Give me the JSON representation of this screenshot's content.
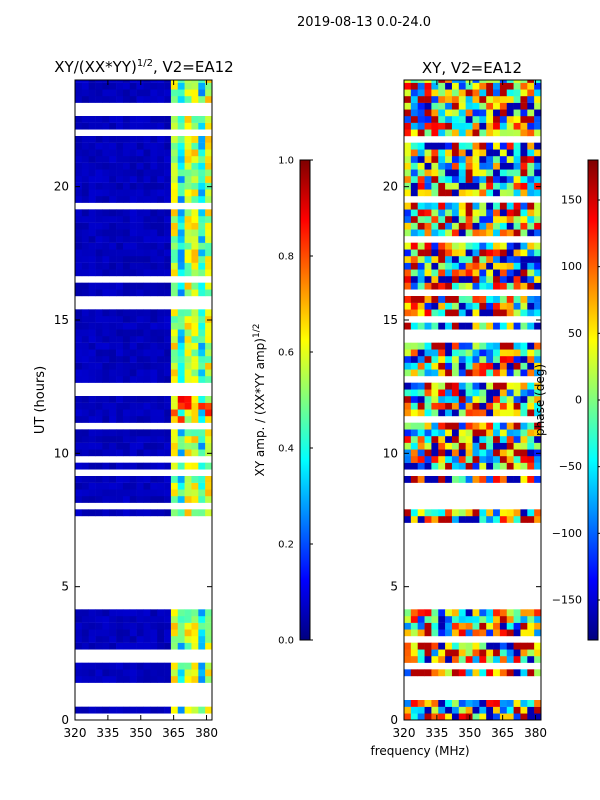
{
  "figure": {
    "suptitle": "2019-08-13 0.0-24.0",
    "xlabel": "frequency (MHz)"
  },
  "colors": {
    "jet": [
      "#00007f",
      "#0000ff",
      "#007fff",
      "#00ffff",
      "#7fff7f",
      "#ffff00",
      "#ff7f00",
      "#ff0000",
      "#7f0000"
    ],
    "blank": "#ffffff",
    "frame": "#000000"
  },
  "chart_data": [
    {
      "type": "heatmap",
      "title": "XY/(XX*YY)^1/2, V2=EA12",
      "title_main": "XY/(XX*YY)",
      "title_sup": "1/2",
      "title_tail": ", V2=EA12",
      "xlabel": "",
      "ylabel": "UT (hours)",
      "xlim": [
        320,
        382.5
      ],
      "ylim": [
        0,
        24
      ],
      "xticks": [
        320,
        335,
        350,
        365,
        380
      ],
      "yticks": [
        0,
        5,
        10,
        15,
        20
      ],
      "colorbar": {
        "label": "XY amp. / (XX*YY amp)^1/2",
        "label_main": "XY amp. / (XX*YY amp)",
        "label_sup": "1/2",
        "range": [
          0.0,
          1.0
        ],
        "ticks": [
          "0.0",
          "0.2",
          "0.4",
          "0.6",
          "0.8",
          "1.0"
        ],
        "tick_values": [
          0.0,
          0.2,
          0.4,
          0.6,
          0.8,
          1.0
        ]
      },
      "data_hours": [
        [
          0.0,
          0.75
        ],
        [
          1.4,
          4.35
        ],
        [
          7.4,
          24.0
        ]
      ],
      "gap_hours": [
        0.75,
        1.4,
        4.35,
        7.4
      ],
      "values_description": "amplitude mostly ~0.05 below 362 MHz; channels 362-382 MHz show bands 0.3-0.7; peak ~0.85 near 11.0-12.0 h"
    },
    {
      "type": "heatmap",
      "title": "XY, V2=EA12",
      "xlabel": "",
      "ylabel": "",
      "xlim": [
        320,
        382.5
      ],
      "ylim": [
        0,
        24
      ],
      "xticks": [
        320,
        335,
        350,
        365,
        380
      ],
      "yticks": [
        0,
        5,
        10,
        15,
        20
      ],
      "colorbar": {
        "label": "phase (deg)",
        "range": [
          -180,
          180
        ],
        "ticks": [
          "−150",
          "−100",
          "−50",
          "0",
          "50",
          "100",
          "150"
        ],
        "tick_values": [
          -150,
          -100,
          -50,
          0,
          50,
          100,
          150
        ]
      },
      "data_hours": [
        [
          0.0,
          0.75
        ],
        [
          1.4,
          4.35
        ],
        [
          7.4,
          24.0
        ]
      ],
      "gap_hours": [
        0.75,
        1.4,
        4.35,
        7.4
      ]
    }
  ]
}
